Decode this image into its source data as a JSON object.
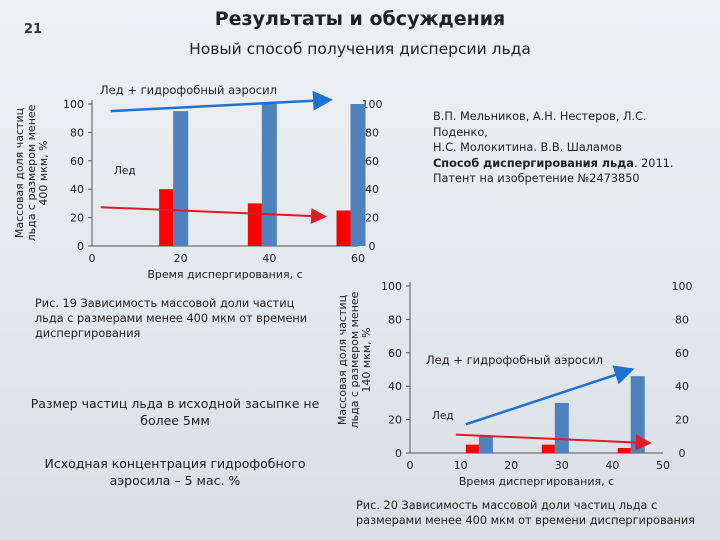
{
  "page_number": "21",
  "title": "Результаты и обсуждения",
  "subtitle": "Новый способ получения дисперсии льда",
  "reference": {
    "authors": "В.П. Мельников, А.Н. Нестеров, Л.С. Поденко,",
    "authors2": "Н.С. Молокитина. В.В. Шаламов",
    "method": "Способ диспергирования льда",
    "year": ". 2011.",
    "patent": "Патент на изобретение №2473850"
  },
  "caption1": "Рис. 19 Зависимость массовой доли частиц льда с размерами менее 400 мкм от времени диспергирования",
  "note1": "Размер частиц льда в исходной засыпке не более 5мм",
  "note2": "Исходная концентрация гидрофобного аэросила – 5 мас. %",
  "caption2": "Рис. 20  Зависимость массовой доли частиц льда с размерами менее 400 мкм от времени диспергирования",
  "colors": {
    "ice": "#ff0000",
    "aerosil": "#4f81bd",
    "trend_ice": "#e0192b",
    "trend_aerosil": "#1e72d4"
  },
  "chart_data": [
    {
      "type": "bar",
      "title": "",
      "xlabel": "Время диспергирования, с",
      "ylabel": "Массовая доля частиц льда с размером менее 400 мкм, %",
      "xlim": [
        0,
        60
      ],
      "ylim": [
        0,
        100
      ],
      "x_ticks": [
        "0",
        "20",
        "40",
        "60"
      ],
      "y_ticks": [
        "0",
        "20",
        "40",
        "60",
        "80",
        "100"
      ],
      "series": [
        {
          "name": "Лед + гидрофобный аэросил",
          "x": [
            20,
            40,
            60
          ],
          "values": [
            95,
            100,
            100
          ]
        },
        {
          "name": "Лед",
          "x": [
            20,
            40,
            60
          ],
          "values": [
            40,
            30,
            25
          ]
        }
      ],
      "trend_arrows": true
    },
    {
      "type": "bar",
      "title": "",
      "xlabel": "Время диспергирования, с",
      "ylabel": "Массовая доля частиц льда с размером менее 140 мкм, %",
      "xlim": [
        0,
        50
      ],
      "ylim": [
        0,
        100
      ],
      "x_ticks": [
        "0",
        "10",
        "20",
        "30",
        "40",
        "50"
      ],
      "y_ticks": [
        "0",
        "20",
        "40",
        "60",
        "80",
        "100"
      ],
      "series": [
        {
          "name": "Лед + гидрофобный аэросил",
          "x": [
            15,
            30,
            45
          ],
          "values": [
            10,
            30,
            46
          ]
        },
        {
          "name": "Лед",
          "x": [
            15,
            30,
            45
          ],
          "values": [
            5,
            5,
            3
          ]
        }
      ],
      "trend_arrows": true
    }
  ]
}
